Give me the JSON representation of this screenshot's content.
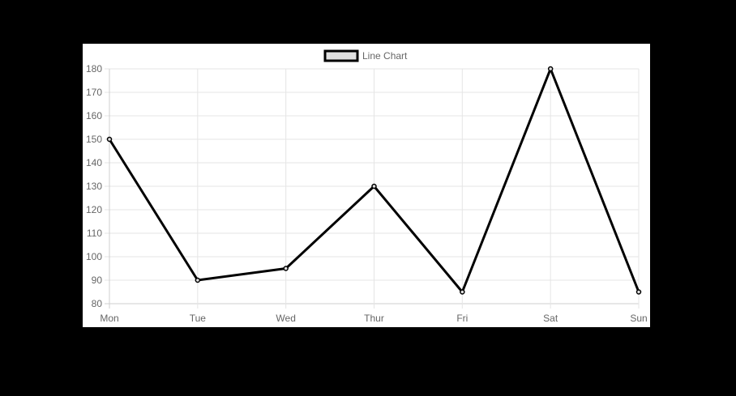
{
  "chart_data": {
    "type": "line",
    "categories": [
      "Mon",
      "Tue",
      "Wed",
      "Thur",
      "Fri",
      "Sat",
      "Sun"
    ],
    "series": [
      {
        "name": "Line Chart",
        "values": [
          150,
          90,
          95,
          130,
          85,
          180,
          85
        ],
        "line_color": "#000000",
        "fill_color": "#e0e0e0"
      }
    ],
    "ylim": [
      80,
      180
    ],
    "y_ticks": [
      80,
      90,
      100,
      110,
      120,
      130,
      140,
      150,
      160,
      170,
      180
    ],
    "grid": true,
    "legend_position": "top"
  }
}
